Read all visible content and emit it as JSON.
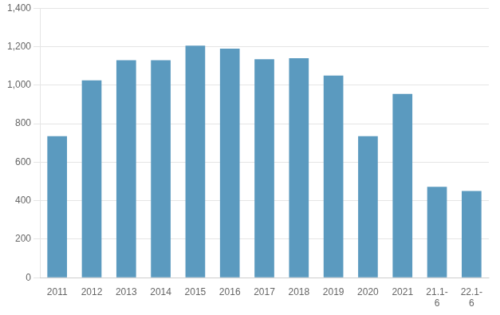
{
  "chart_data": {
    "type": "bar",
    "categories": [
      "2011",
      "2012",
      "2013",
      "2014",
      "2015",
      "2016",
      "2017",
      "2018",
      "2019",
      "2020",
      "2021",
      "21.1-\n6",
      "22.1-\n6"
    ],
    "values": [
      735,
      1025,
      1130,
      1130,
      1205,
      1190,
      1135,
      1140,
      1050,
      735,
      955,
      472,
      450
    ],
    "color": "#5b9abf",
    "ylim": [
      0,
      1400
    ],
    "yticks": [
      0,
      200,
      400,
      600,
      800,
      {
        "value": 1000,
        "label": "1,000"
      },
      {
        "value": 1200,
        "label": "1,200"
      },
      {
        "value": 1400,
        "label": "1,400"
      }
    ],
    "grid": true
  }
}
